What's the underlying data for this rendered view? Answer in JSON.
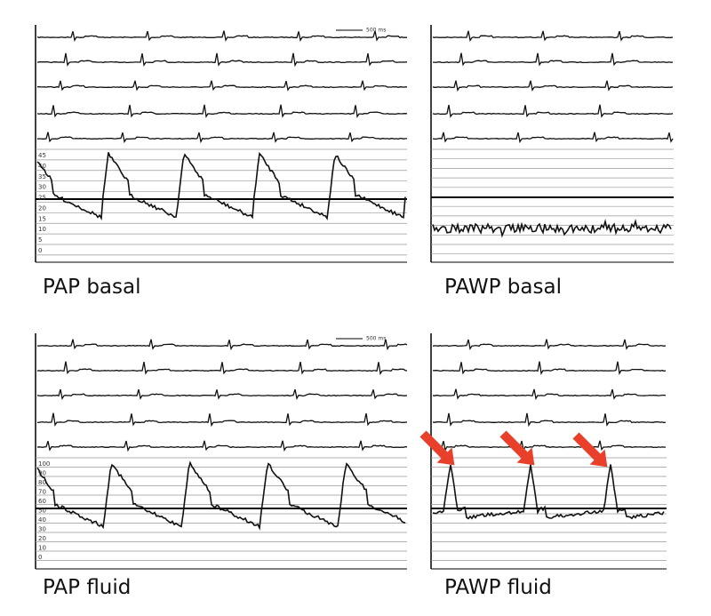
{
  "panels": [
    {
      "label": "PAP basal",
      "scale_bar": "500 ms",
      "scale_labels": [
        45,
        40,
        35,
        30,
        25,
        20,
        15,
        10,
        5,
        0
      ]
    },
    {
      "label": "PAWP basal"
    },
    {
      "label": "PAP fluid",
      "scale_bar": "500 ms",
      "scale_labels": [
        100,
        90,
        80,
        70,
        60,
        50,
        40,
        30,
        20,
        10,
        0
      ]
    },
    {
      "label": "PAWP fluid"
    }
  ]
}
